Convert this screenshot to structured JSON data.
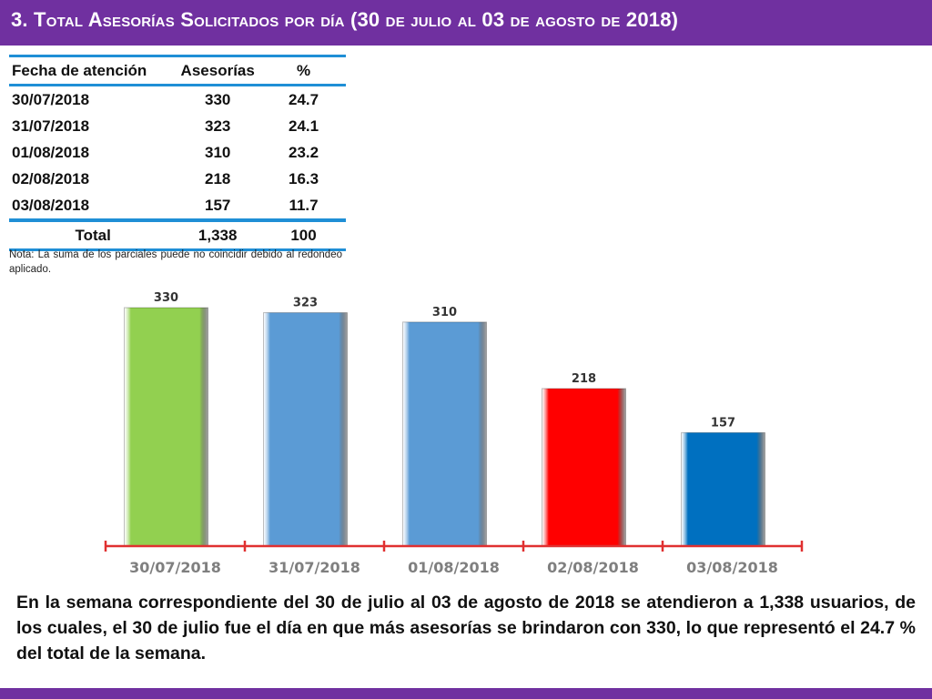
{
  "title": "3.  Total Asesorías Solicitados por día  (30 de julio al 03 de agosto de 2018)",
  "table": {
    "headers": [
      "Fecha de atención",
      "Asesorías",
      "%"
    ],
    "rows": [
      [
        "30/07/2018",
        "330",
        "24.7"
      ],
      [
        "31/07/2018",
        "323",
        "24.1"
      ],
      [
        "01/08/2018",
        "310",
        "23.2"
      ],
      [
        "02/08/2018",
        "218",
        "16.3"
      ],
      [
        "03/08/2018",
        "157",
        "11.7"
      ]
    ],
    "total": [
      "Total",
      "1,338",
      "100"
    ]
  },
  "note": "Nota: La suma de los parciales puede no coincidir debido al redondeo aplicado.",
  "chart_data": {
    "type": "bar",
    "categories": [
      "30/07/2018",
      "31/07/2018",
      "01/08/2018",
      "02/08/2018",
      "03/08/2018"
    ],
    "values": [
      330,
      323,
      310,
      218,
      157
    ],
    "data_labels": [
      "330",
      "323",
      "310",
      "218",
      "157"
    ],
    "bar_colors": [
      "#92D050",
      "#5B9BD5",
      "#5B9BD5",
      "#FF0000",
      "#0070C0"
    ],
    "axis_color": "#E03030",
    "title": "",
    "xlabel": "",
    "ylabel": "",
    "ylim": [
      0,
      330
    ],
    "grid": false,
    "legend": "none"
  },
  "paragraph": "En la semana correspondiente del 30 de julio al 03 de agosto de 2018 se atendieron a 1,338 usuarios, de los cuales, el 30 de julio fue el día en que más asesorías se brindaron con 330, lo que representó el 24.7 % del total de la semana."
}
